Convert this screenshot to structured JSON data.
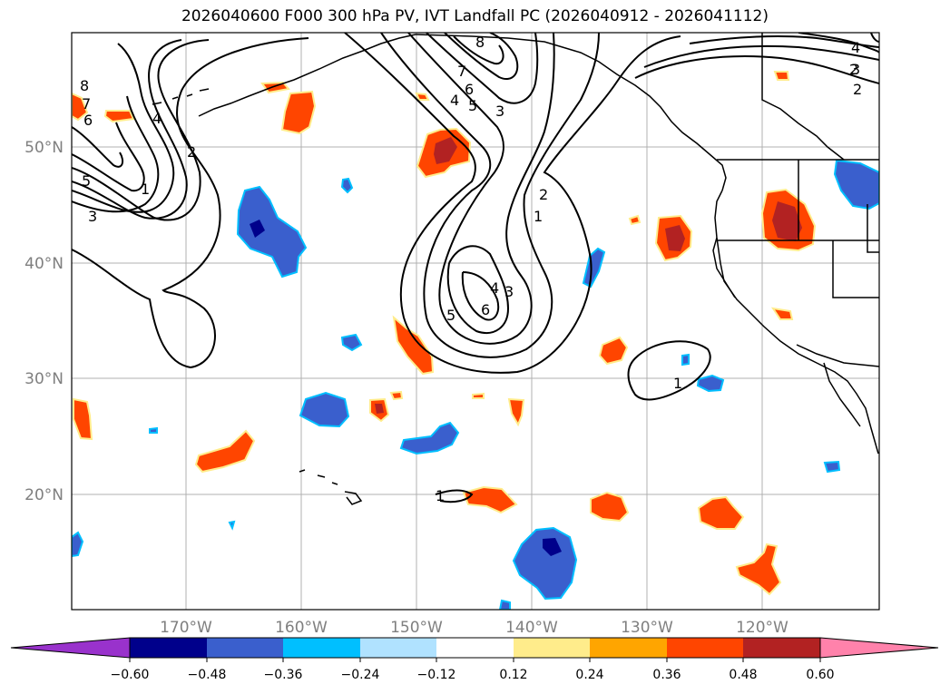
{
  "title": "2026040600 F000 300 hPa PV, IVT Landfall PC (2026040912 - 2026041112)",
  "map": {
    "lat_labels": [
      "50°N",
      "40°N",
      "30°N",
      "20°N"
    ],
    "lon_labels": [
      "170°W",
      "160°W",
      "150°W",
      "140°W",
      "130°W",
      "120°W"
    ],
    "contour_labels": [
      "8",
      "7",
      "6",
      "5",
      "4",
      "3",
      "2",
      "1",
      "7",
      "8",
      "4",
      "5",
      "6",
      "3",
      "2",
      "4",
      "3",
      "2",
      "1",
      "2",
      "6",
      "5",
      "3",
      "4",
      "1",
      "1"
    ]
  },
  "colorbar": {
    "ticks": [
      "−0.60",
      "−0.48",
      "−0.36",
      "−0.24",
      "−0.12",
      "0.12",
      "0.24",
      "0.36",
      "0.48",
      "0.60"
    ],
    "colors": [
      "#9932cc",
      "#00008b",
      "#3a5fcd",
      "#00bfff",
      "#b0e2ff",
      "#ffffff",
      "#ffec8b",
      "#ffa500",
      "#ff4500",
      "#b22222",
      "#ff82ab"
    ]
  },
  "colors": {
    "land_outline": "#000000",
    "grid": "#b0b0b0",
    "neg_strong": "#00008b",
    "neg_mid": "#3a5fcd",
    "neg_light": "#00bfff",
    "pos_light": "#ffec8b",
    "pos_mid": "#ffa500",
    "pos_strong": "#ff4500",
    "pos_max": "#b22222"
  }
}
